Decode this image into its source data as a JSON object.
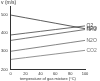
{
  "chart_data": {
    "type": "line",
    "y_label": "v (m/s)",
    "x_label": "temperature of gas mixture (°C)",
    "x": [
      0,
      20,
      40,
      60,
      80,
      100
    ],
    "series": [
      {
        "name": "H2O",
        "color": "#333333",
        "values": [
          500,
          485,
          470,
          455,
          440,
          425
        ]
      },
      {
        "name": "O2",
        "color": "#444444",
        "values": [
          390,
          400,
          410,
          420,
          430,
          440
        ]
      },
      {
        "name": "NH3",
        "color": "#555555",
        "values": [
          360,
          372,
          384,
          396,
          408,
          420
        ]
      },
      {
        "name": "N2O",
        "color": "#666666",
        "values": [
          300,
          312,
          324,
          336,
          348,
          360
        ]
      },
      {
        "name": "CO2",
        "color": "#777777",
        "values": [
          255,
          265,
          275,
          285,
          295,
          305
        ]
      }
    ],
    "xlim": [
      0,
      100
    ],
    "xticks": [
      0,
      20,
      40,
      60,
      80,
      100
    ],
    "ylim": [
      200,
      550
    ],
    "yticks": [
      200,
      300,
      400,
      500
    ],
    "grid": false
  }
}
